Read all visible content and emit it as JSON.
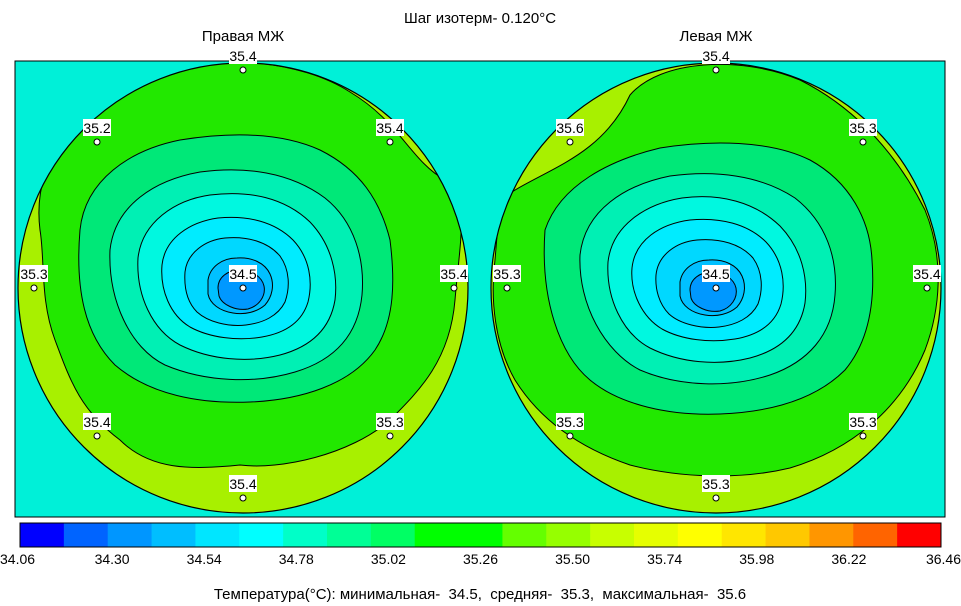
{
  "header": {
    "title": "Шаг изотерм- 0.120°C",
    "left_panel_label": "Правая МЖ",
    "right_panel_label": "Левая МЖ"
  },
  "footer": {
    "summary": "Температура(°C): минимальная-  34.5,  средняя-  35.3,  максимальная-  35.6"
  },
  "chart_data": {
    "type": "heatmap",
    "colorbar": {
      "ticks": [
        "34.06",
        "34.30",
        "34.54",
        "34.78",
        "35.02",
        "35.26",
        "35.50",
        "35.74",
        "35.98",
        "36.22",
        "36.46"
      ],
      "colors": [
        "#0000ff",
        "#0064ff",
        "#0096ff",
        "#00beff",
        "#00e6ff",
        "#00ffff",
        "#00ffc8",
        "#00ff96",
        "#00ff64",
        "#00ff00",
        "#00ff00",
        "#64ff00",
        "#96ff00",
        "#c8ff00",
        "#e6ff00",
        "#ffff00",
        "#ffe600",
        "#ffc800",
        "#ff9600",
        "#ff6400",
        "#ff0000"
      ]
    },
    "panels": [
      {
        "name": "Правая МЖ",
        "points": [
          {
            "pos": "top",
            "label": "35.4"
          },
          {
            "pos": "upper-left",
            "label": "35.2"
          },
          {
            "pos": "upper-right",
            "label": "35.4"
          },
          {
            "pos": "left",
            "label": "35.3"
          },
          {
            "pos": "center",
            "label": "34.5"
          },
          {
            "pos": "right",
            "label": "35.4"
          },
          {
            "pos": "lower-left",
            "label": "35.4"
          },
          {
            "pos": "lower-right",
            "label": "35.3"
          },
          {
            "pos": "bottom",
            "label": "35.4"
          }
        ]
      },
      {
        "name": "Левая МЖ",
        "points": [
          {
            "pos": "top",
            "label": "35.4"
          },
          {
            "pos": "upper-left",
            "label": "35.6"
          },
          {
            "pos": "upper-right",
            "label": "35.3"
          },
          {
            "pos": "left",
            "label": "35.3"
          },
          {
            "pos": "center",
            "label": "34.5"
          },
          {
            "pos": "right",
            "label": "35.4"
          },
          {
            "pos": "lower-left",
            "label": "35.3"
          },
          {
            "pos": "lower-right",
            "label": "35.3"
          },
          {
            "pos": "bottom",
            "label": "35.3"
          }
        ]
      }
    ]
  }
}
